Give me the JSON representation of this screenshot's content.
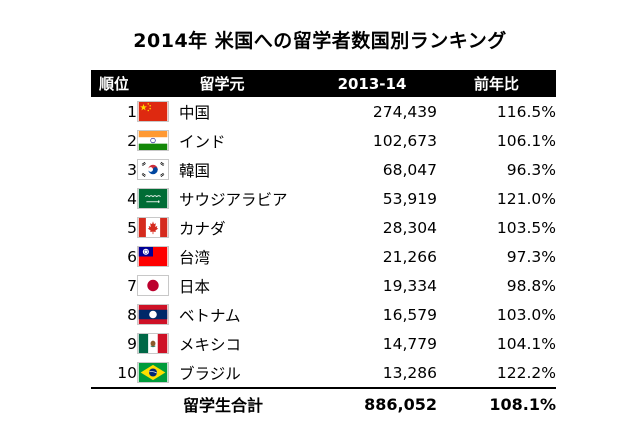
{
  "title": "2014年 米国への留学者数国別ランキング",
  "table": {
    "headers": {
      "rank": "順位",
      "country": "留学元",
      "value": "2013-14",
      "ratio": "前年比"
    },
    "rows": [
      {
        "rank": "1",
        "country": "中国",
        "flag": "china-flag-icon",
        "value": "274,439",
        "ratio": "116.5%"
      },
      {
        "rank": "2",
        "country": "インド",
        "flag": "india-flag-icon",
        "value": "102,673",
        "ratio": "106.1%"
      },
      {
        "rank": "3",
        "country": "韓国",
        "flag": "south-korea-flag-icon",
        "value": "68,047",
        "ratio": "96.3%"
      },
      {
        "rank": "4",
        "country": "サウジアラビア",
        "flag": "saudi-arabia-flag-icon",
        "value": "53,919",
        "ratio": "121.0%"
      },
      {
        "rank": "5",
        "country": "カナダ",
        "flag": "canada-flag-icon",
        "value": "28,304",
        "ratio": "103.5%"
      },
      {
        "rank": "6",
        "country": "台湾",
        "flag": "taiwan-flag-icon",
        "value": "21,266",
        "ratio": "97.3%"
      },
      {
        "rank": "7",
        "country": "日本",
        "flag": "japan-flag-icon",
        "value": "19,334",
        "ratio": "98.8%"
      },
      {
        "rank": "8",
        "country": "ベトナム",
        "flag": "laos-flag-icon",
        "value": "16,579",
        "ratio": "103.0%"
      },
      {
        "rank": "9",
        "country": "メキシコ",
        "flag": "mexico-flag-icon",
        "value": "14,779",
        "ratio": "104.1%"
      },
      {
        "rank": "10",
        "country": "ブラジル",
        "flag": "brazil-flag-icon",
        "value": "13,286",
        "ratio": "122.2%"
      }
    ],
    "total": {
      "label": "留学生合計",
      "value": "886,052",
      "ratio": "108.1%"
    }
  },
  "colors": {
    "header_bg": "#000000",
    "header_text": "#ffffff",
    "china_red": "#de2910",
    "india_saffron": "#ff9933",
    "india_green": "#138808",
    "saudi_green": "#006c35",
    "canada_red": "#d52b1e",
    "taiwan_red": "#fe0000",
    "taiwan_blue": "#000095",
    "japan_red": "#bc002d",
    "laos_red": "#ce1126",
    "laos_blue": "#002868",
    "mexico_green": "#006847",
    "brazil_green": "#009c3b",
    "brazil_yellow": "#ffdf00",
    "brazil_blue": "#002776"
  }
}
